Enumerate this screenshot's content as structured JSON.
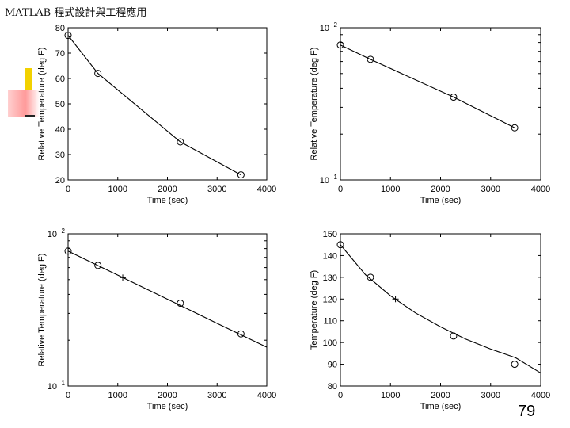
{
  "header": {
    "title": "MATLAB 程式設計與工程應用"
  },
  "footer": {
    "page_number": "79"
  },
  "chart_data": [
    {
      "type": "line",
      "xlabel": "Time (sec)",
      "ylabel": "Relative Temperature (deg F)",
      "xlim": [
        0,
        4000
      ],
      "ylim": [
        20,
        80
      ],
      "yscale": "linear",
      "xticks": [
        "0",
        "1000",
        "2000",
        "3000",
        "4000"
      ],
      "yticks": [
        "20",
        "30",
        "40",
        "50",
        "60",
        "70",
        "80"
      ],
      "grid": false,
      "series": [
        {
          "style": "line+circle",
          "x": [
            0,
            600,
            2260,
            3480
          ],
          "y": [
            77,
            62,
            35,
            22
          ]
        }
      ]
    },
    {
      "type": "line",
      "xlabel": "Time (sec)",
      "ylabel": "Relative Temperature (deg F)",
      "xlim": [
        0,
        4000
      ],
      "ylim": [
        10,
        100
      ],
      "yscale": "log",
      "xticks": [
        "0",
        "1000",
        "2000",
        "3000",
        "4000"
      ],
      "yticks": [
        {
          "base": "10",
          "exp": "1"
        },
        {
          "base": "10",
          "exp": "2"
        }
      ],
      "grid": false,
      "series": [
        {
          "style": "line+circle",
          "x": [
            0,
            600,
            2260,
            3480
          ],
          "y": [
            77,
            62,
            35,
            22
          ]
        }
      ]
    },
    {
      "type": "line",
      "xlabel": "Time (sec)",
      "ylabel": "Relative Temperature (deg F)",
      "xlim": [
        0,
        4000
      ],
      "ylim": [
        10,
        100
      ],
      "yscale": "log",
      "xticks": [
        "0",
        "1000",
        "2000",
        "3000",
        "4000"
      ],
      "yticks": [
        {
          "base": "10",
          "exp": "1"
        },
        {
          "base": "10",
          "exp": "2"
        }
      ],
      "grid": false,
      "series": [
        {
          "style": "line",
          "x": [
            0,
            1000,
            2000,
            3000,
            4000
          ],
          "y": [
            77,
            53.5,
            37.2,
            25.8,
            18
          ]
        },
        {
          "style": "circle",
          "x": [
            0,
            600,
            2260,
            3480
          ],
          "y": [
            77,
            62,
            35,
            22
          ]
        },
        {
          "style": "plus",
          "x": [
            1100
          ],
          "y": [
            51.5
          ]
        }
      ]
    },
    {
      "type": "line",
      "xlabel": "Time (sec)",
      "ylabel": "Temperature (deg F)",
      "xlim": [
        0,
        4000
      ],
      "ylim": [
        80,
        150
      ],
      "yscale": "linear",
      "xticks": [
        "0",
        "1000",
        "2000",
        "3000",
        "4000"
      ],
      "yticks": [
        "80",
        "90",
        "100",
        "110",
        "120",
        "130",
        "140",
        "150"
      ],
      "grid": false,
      "series": [
        {
          "style": "line",
          "x": [
            0,
            500,
            1000,
            1500,
            2000,
            2500,
            3000,
            3500,
            4000
          ],
          "y": [
            145,
            131.2,
            121.5,
            113.6,
            107.2,
            101.6,
            97,
            93,
            86
          ]
        },
        {
          "style": "circle",
          "x": [
            0,
            600,
            2260,
            3480
          ],
          "y": [
            145,
            130,
            103,
            90
          ]
        },
        {
          "style": "plus",
          "x": [
            1100
          ],
          "y": [
            120
          ]
        }
      ]
    }
  ]
}
